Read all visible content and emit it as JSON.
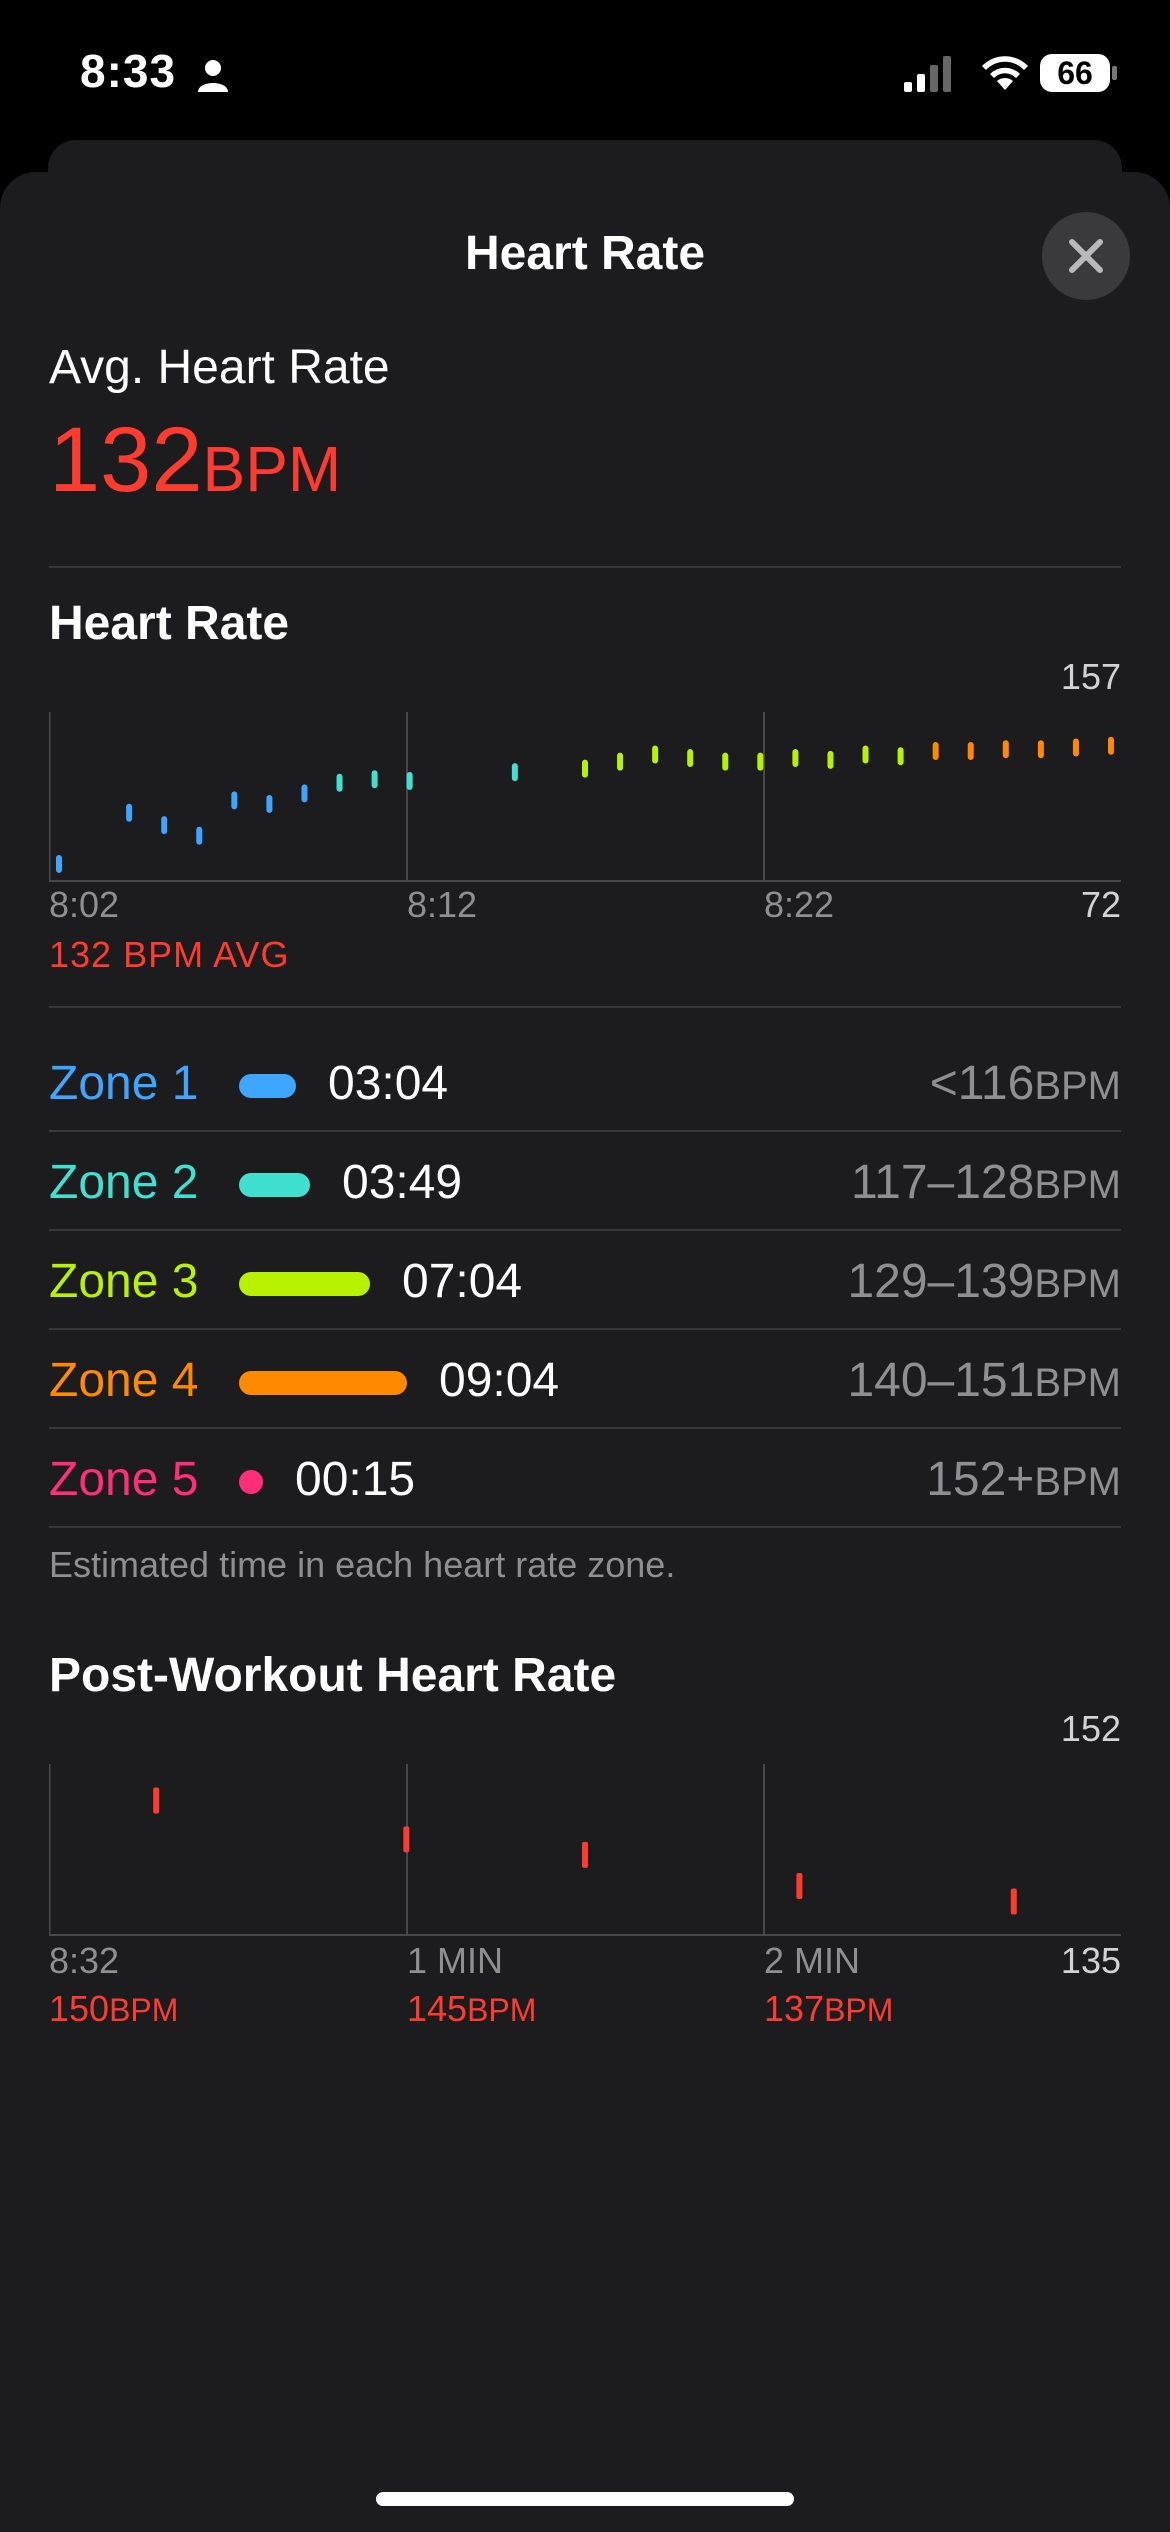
{
  "status_bar": {
    "time": "8:33",
    "battery": "66"
  },
  "sheet": {
    "title": "Heart Rate"
  },
  "average": {
    "label": "Avg. Heart Rate",
    "value": "132",
    "unit": "BPM"
  },
  "hr_section": {
    "title": "Heart Rate",
    "y_max": "157",
    "y_min": "72",
    "x_ticks": [
      "8:02",
      "8:12",
      "8:22"
    ],
    "avg_line": "132 BPM AVG"
  },
  "zones": [
    {
      "name": "Zone 1",
      "time": "03:04",
      "range": "<116",
      "unit": "BPM",
      "color": "#3ea6ff",
      "fraction": 0.34
    },
    {
      "name": "Zone 2",
      "time": "03:49",
      "range": "117–128",
      "unit": "BPM",
      "color": "#40e0d0",
      "fraction": 0.42
    },
    {
      "name": "Zone 3",
      "time": "07:04",
      "range": "129–139",
      "unit": "BPM",
      "color": "#b8f200",
      "fraction": 0.78
    },
    {
      "name": "Zone 4",
      "time": "09:04",
      "range": "140–151",
      "unit": "BPM",
      "color": "#ff8a00",
      "fraction": 1.0
    },
    {
      "name": "Zone 5",
      "time": "00:15",
      "range": "152+",
      "unit": "BPM",
      "color": "#ff2d7a",
      "fraction": 0.03
    }
  ],
  "zones_note": "Estimated time in each heart rate zone.",
  "post_workout": {
    "title": "Post-Workout Heart Rate",
    "y_max": "152",
    "y_min": "135",
    "x_labels": [
      "8:32",
      "1 MIN",
      "2 MIN"
    ],
    "values": [
      "150",
      "145",
      "137"
    ],
    "unit": "BPM"
  },
  "chart_data": [
    {
      "type": "scatter",
      "title": "Heart Rate",
      "xlabel": "",
      "ylabel": "",
      "x_ticks": [
        "8:02",
        "8:12",
        "8:22"
      ],
      "ylim": [
        72,
        157
      ],
      "average": 132,
      "x": [
        8.02,
        8.04,
        8.05,
        8.06,
        8.07,
        8.08,
        8.09,
        8.1,
        8.11,
        8.12,
        8.15,
        8.17,
        8.18,
        8.19,
        8.2,
        8.21,
        8.22,
        8.23,
        8.24,
        8.25,
        8.26,
        8.27,
        8.28,
        8.29,
        8.3,
        8.31,
        8.32
      ],
      "y": [
        76,
        105,
        98,
        92,
        112,
        110,
        116,
        122,
        124,
        123,
        128,
        130,
        134,
        138,
        136,
        134,
        134,
        136,
        135,
        138,
        137,
        140,
        140,
        141,
        141,
        142,
        143
      ]
    },
    {
      "type": "scatter",
      "title": "Post-Workout Heart Rate",
      "xlabel": "",
      "ylabel": "",
      "x_ticks": [
        "8:32",
        "1 MIN",
        "2 MIN"
      ],
      "ylim": [
        135,
        152
      ],
      "x": [
        0.3,
        1.0,
        1.5,
        2.1,
        2.7
      ],
      "y": [
        150,
        145,
        143,
        139,
        137
      ]
    }
  ]
}
